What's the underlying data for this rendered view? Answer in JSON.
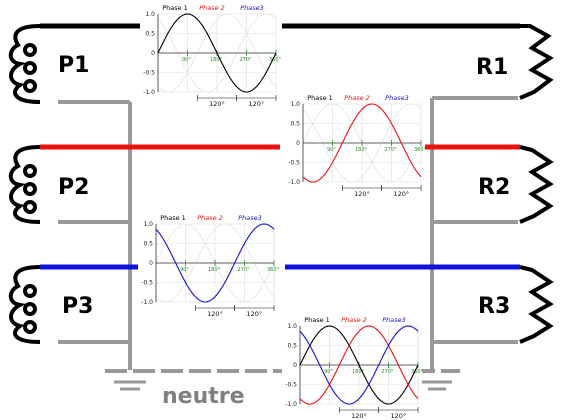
{
  "sources": [
    "P1",
    "P2",
    "P3"
  ],
  "receivers": [
    "R1",
    "R2",
    "R3"
  ],
  "neutral_label": "neutre",
  "colors": {
    "phase1": "#000000",
    "phase2": "#ee1111",
    "phase3": "#1111dd",
    "neutral": "#999999"
  },
  "plot_legend": [
    "Phase 1",
    "Phase 2",
    "Phase3"
  ],
  "plot_yticks": [
    "1.0",
    "0.5",
    "0",
    "-0.5",
    "-1.0"
  ],
  "plot_degree_marks": [
    "90°",
    "180°",
    "270°",
    "360°"
  ],
  "plot_spacing_labels": [
    "120°",
    "120°"
  ],
  "chart_data": [
    {
      "type": "line",
      "description_series": "Phase 1",
      "shown_series": [
        1
      ],
      "ylim": [
        -1,
        1
      ],
      "x_degrees": [
        0,
        360
      ]
    },
    {
      "type": "line",
      "shown_series": [
        2
      ],
      "ylim": [
        -1,
        1
      ],
      "x_degrees": [
        0,
        360
      ]
    },
    {
      "type": "line",
      "shown_series": [
        3
      ],
      "ylim": [
        -1,
        1
      ],
      "x_degrees": [
        0,
        360
      ]
    },
    {
      "type": "line",
      "shown_series": [
        1,
        2,
        3
      ],
      "ylim": [
        -1,
        1
      ],
      "x_degrees": [
        0,
        360
      ]
    }
  ]
}
